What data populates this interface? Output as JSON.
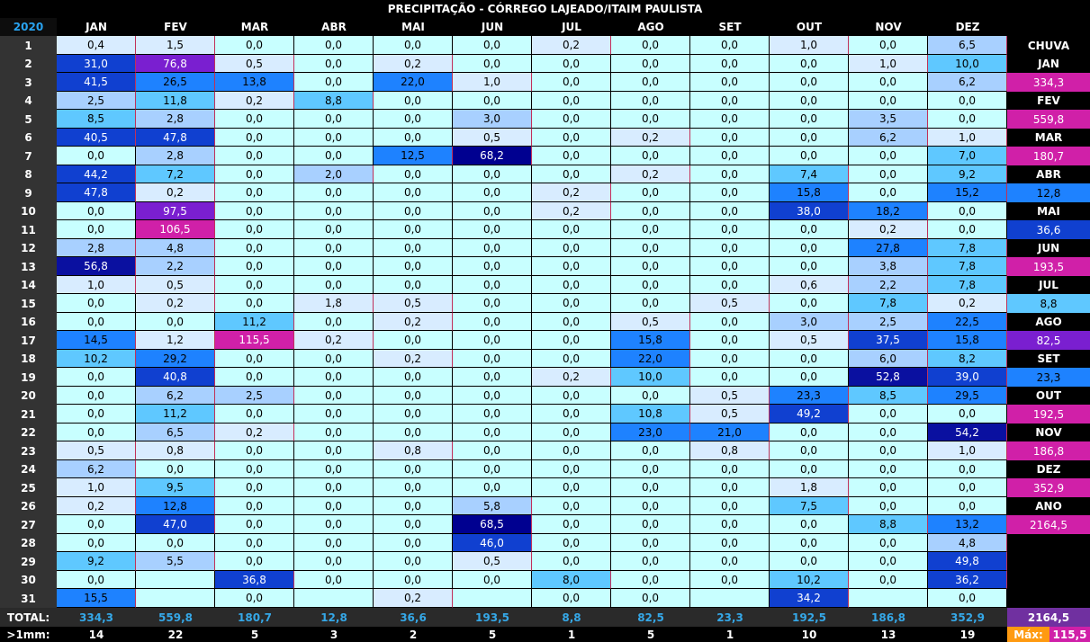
{
  "title": "PRECIPITAÇÃO - CÓRREGO LAJEADO/ITAIM PAULISTA",
  "year": "2020",
  "months": [
    "JAN",
    "FEV",
    "MAR",
    "ABR",
    "MAI",
    "JUN",
    "JUL",
    "AGO",
    "SET",
    "OUT",
    "NOV",
    "DEZ"
  ],
  "days": [
    "1",
    "2",
    "3",
    "4",
    "5",
    "6",
    "7",
    "8",
    "9",
    "10",
    "11",
    "12",
    "13",
    "14",
    "15",
    "16",
    "17",
    "18",
    "19",
    "20",
    "21",
    "22",
    "23",
    "24",
    "25",
    "26",
    "27",
    "28",
    "29",
    "30",
    "31"
  ],
  "rows": [
    [
      "0,4",
      "1,5",
      "0,0",
      "0,0",
      "0,0",
      "0,0",
      "0,2",
      "0,0",
      "0,0",
      "1,0",
      "0,0",
      "6,5"
    ],
    [
      "31,0",
      "76,8",
      "0,5",
      "0,0",
      "0,2",
      "0,0",
      "0,0",
      "0,0",
      "0,0",
      "0,0",
      "1,0",
      "10,0"
    ],
    [
      "41,5",
      "26,5",
      "13,8",
      "0,0",
      "22,0",
      "1,0",
      "0,0",
      "0,0",
      "0,0",
      "0,0",
      "0,0",
      "6,2"
    ],
    [
      "2,5",
      "11,8",
      "0,2",
      "8,8",
      "0,0",
      "0,0",
      "0,0",
      "0,0",
      "0,0",
      "0,0",
      "0,0",
      "0,0"
    ],
    [
      "8,5",
      "2,8",
      "0,0",
      "0,0",
      "0,0",
      "3,0",
      "0,0",
      "0,0",
      "0,0",
      "0,0",
      "3,5",
      "0,0"
    ],
    [
      "40,5",
      "47,8",
      "0,0",
      "0,0",
      "0,0",
      "0,5",
      "0,0",
      "0,2",
      "0,0",
      "0,0",
      "6,2",
      "1,0"
    ],
    [
      "0,0",
      "2,8",
      "0,0",
      "0,0",
      "12,5",
      "68,2",
      "0,0",
      "0,0",
      "0,0",
      "0,0",
      "0,0",
      "7,0"
    ],
    [
      "44,2",
      "7,2",
      "0,0",
      "2,0",
      "0,0",
      "0,0",
      "0,0",
      "0,2",
      "0,0",
      "7,4",
      "0,0",
      "9,2"
    ],
    [
      "47,8",
      "0,2",
      "0,0",
      "0,0",
      "0,0",
      "0,0",
      "0,2",
      "0,0",
      "0,0",
      "15,8",
      "0,0",
      "15,2"
    ],
    [
      "0,0",
      "97,5",
      "0,0",
      "0,0",
      "0,0",
      "0,0",
      "0,2",
      "0,0",
      "0,0",
      "38,0",
      "18,2",
      "0,0"
    ],
    [
      "0,0",
      "106,5",
      "0,0",
      "0,0",
      "0,0",
      "0,0",
      "0,0",
      "0,0",
      "0,0",
      "0,0",
      "0,2",
      "0,0"
    ],
    [
      "2,8",
      "4,8",
      "0,0",
      "0,0",
      "0,0",
      "0,0",
      "0,0",
      "0,0",
      "0,0",
      "0,0",
      "27,8",
      "7,8"
    ],
    [
      "56,8",
      "2,2",
      "0,0",
      "0,0",
      "0,0",
      "0,0",
      "0,0",
      "0,0",
      "0,0",
      "0,0",
      "3,8",
      "7,8"
    ],
    [
      "1,0",
      "0,5",
      "0,0",
      "0,0",
      "0,0",
      "0,0",
      "0,0",
      "0,0",
      "0,0",
      "0,6",
      "2,2",
      "7,8"
    ],
    [
      "0,0",
      "0,2",
      "0,0",
      "1,8",
      "0,5",
      "0,0",
      "0,0",
      "0,0",
      "0,5",
      "0,0",
      "7,8",
      "0,2"
    ],
    [
      "0,0",
      "0,0",
      "11,2",
      "0,0",
      "0,2",
      "0,0",
      "0,0",
      "0,5",
      "0,0",
      "3,0",
      "2,5",
      "22,5"
    ],
    [
      "14,5",
      "1,2",
      "115,5",
      "0,2",
      "0,0",
      "0,0",
      "0,0",
      "15,8",
      "0,0",
      "0,5",
      "37,5",
      "15,8"
    ],
    [
      "10,2",
      "29,2",
      "0,0",
      "0,0",
      "0,2",
      "0,0",
      "0,0",
      "22,0",
      "0,0",
      "0,0",
      "6,0",
      "8,2"
    ],
    [
      "0,0",
      "40,8",
      "0,0",
      "0,0",
      "0,0",
      "0,0",
      "0,2",
      "10,0",
      "0,0",
      "0,0",
      "52,8",
      "39,0"
    ],
    [
      "0,0",
      "6,2",
      "2,5",
      "0,0",
      "0,0",
      "0,0",
      "0,0",
      "0,0",
      "0,5",
      "23,3",
      "8,5",
      "29,5"
    ],
    [
      "0,0",
      "11,2",
      "0,0",
      "0,0",
      "0,0",
      "0,0",
      "0,0",
      "10,8",
      "0,5",
      "49,2",
      "0,0",
      "0,0"
    ],
    [
      "0,0",
      "6,5",
      "0,2",
      "0,0",
      "0,0",
      "0,0",
      "0,0",
      "23,0",
      "21,0",
      "0,0",
      "0,0",
      "54,2"
    ],
    [
      "0,5",
      "0,8",
      "0,0",
      "0,0",
      "0,8",
      "0,0",
      "0,0",
      "0,0",
      "0,8",
      "0,0",
      "0,0",
      "1,0"
    ],
    [
      "6,2",
      "0,0",
      "0,0",
      "0,0",
      "0,0",
      "0,0",
      "0,0",
      "0,0",
      "0,0",
      "0,0",
      "0,0",
      "0,0"
    ],
    [
      "1,0",
      "9,5",
      "0,0",
      "0,0",
      "0,0",
      "0,0",
      "0,0",
      "0,0",
      "0,0",
      "1,8",
      "0,0",
      "0,0"
    ],
    [
      "0,2",
      "12,8",
      "0,0",
      "0,0",
      "0,0",
      "5,8",
      "0,0",
      "0,0",
      "0,0",
      "7,5",
      "0,0",
      "0,0"
    ],
    [
      "0,0",
      "47,0",
      "0,0",
      "0,0",
      "0,0",
      "68,5",
      "0,0",
      "0,0",
      "0,0",
      "0,0",
      "8,8",
      "13,2"
    ],
    [
      "0,0",
      "0,0",
      "0,0",
      "0,0",
      "0,0",
      "46,0",
      "0,0",
      "0,0",
      "0,0",
      "0,0",
      "0,0",
      "4,8"
    ],
    [
      "9,2",
      "5,5",
      "0,0",
      "0,0",
      "0,0",
      "0,5",
      "0,0",
      "0,0",
      "0,0",
      "0,0",
      "0,0",
      "49,8"
    ],
    [
      "0,0",
      "",
      "36,8",
      "0,0",
      "0,0",
      "0,0",
      "8,0",
      "0,0",
      "0,0",
      "10,2",
      "0,0",
      "36,2"
    ],
    [
      "15,5",
      "",
      "0,0",
      "",
      "0,2",
      "",
      "0,0",
      "0,0",
      "",
      "34,2",
      "",
      "0,0"
    ]
  ],
  "totals_label": "TOTAL:",
  "totals": [
    "334,3",
    "559,8",
    "180,7",
    "12,8",
    "36,6",
    "193,5",
    "8,8",
    "82,5",
    "23,3",
    "192,5",
    "186,8",
    "352,9"
  ],
  "counts_label": ">1mm:",
  "counts": [
    "14",
    "22",
    "5",
    "3",
    "2",
    "5",
    "1",
    "5",
    "1",
    "10",
    "13",
    "19"
  ],
  "side": {
    "header": "CHUVA",
    "items": [
      {
        "label": "JAN",
        "value": "334,3"
      },
      {
        "label": "FEV",
        "value": "559,8"
      },
      {
        "label": "MAR",
        "value": "180,7"
      },
      {
        "label": "ABR",
        "value": "12,8"
      },
      {
        "label": "MAI",
        "value": "36,6"
      },
      {
        "label": "JUN",
        "value": "193,5"
      },
      {
        "label": "JUL",
        "value": "8,8"
      },
      {
        "label": "AGO",
        "value": "82,5"
      },
      {
        "label": "SET",
        "value": "23,3"
      },
      {
        "label": "OUT",
        "value": "192,5"
      },
      {
        "label": "NOV",
        "value": "186,8"
      },
      {
        "label": "DEZ",
        "value": "352,9"
      },
      {
        "label": "ANO",
        "value": "2164,5"
      }
    ],
    "year_total": "2164,5",
    "max_label": "Máx:",
    "max_value": "115,5"
  },
  "colors": {
    "zero": "#c8ffff",
    "light": "#d8ecff",
    "mid_light": "#a8d0ff",
    "sky": "#5fc8ff",
    "blue": "#1e82ff",
    "medium_blue": "#1040d0",
    "dark_blue": "#0a10a0",
    "navy": "#000090",
    "purple": "#7a1fd0",
    "magenta": "#d020a8",
    "total_purple": "#7030a0",
    "max_orange": "#ff9a10"
  }
}
